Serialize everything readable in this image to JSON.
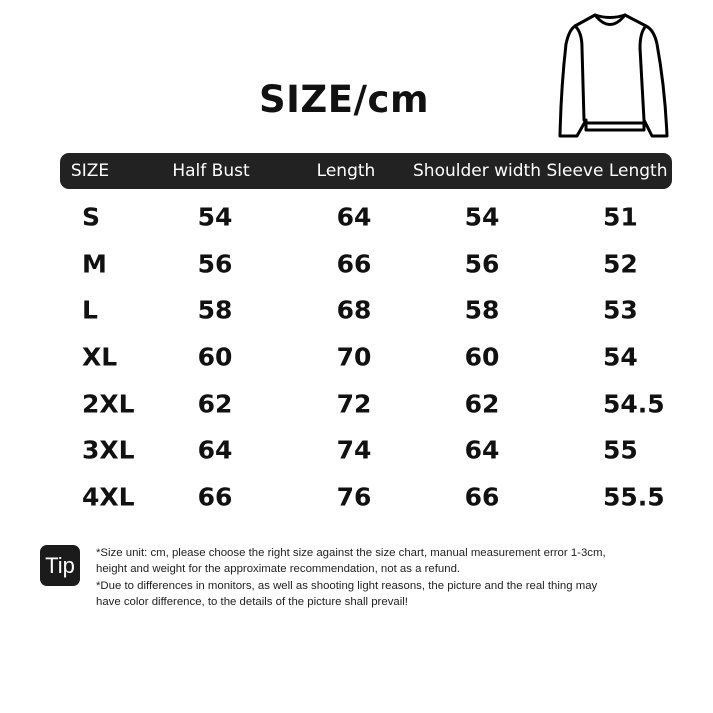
{
  "title": "SIZE/cm",
  "garment_icon": "sweatshirt-outline-icon",
  "table": {
    "headers": [
      "SIZE",
      "Half Bust",
      "Length",
      "Shoulder width",
      "Sleeve Length"
    ],
    "rows": [
      [
        "S",
        "54",
        "64",
        "54",
        "51"
      ],
      [
        "M",
        "56",
        "66",
        "56",
        "52"
      ],
      [
        "L",
        "58",
        "68",
        "58",
        "53"
      ],
      [
        "XL",
        "60",
        "70",
        "60",
        "54"
      ],
      [
        "2XL",
        "62",
        "72",
        "62",
        "54.5"
      ],
      [
        "3XL",
        "64",
        "74",
        "64",
        "55"
      ],
      [
        "4XL",
        "66",
        "76",
        "66",
        "55.5"
      ]
    ]
  },
  "tip": {
    "label": "Tip",
    "lines": [
      "*Size unit: cm, please choose the right size against the size chart, manual measurement error 1-3cm,",
      "height and weight for the approximate recommendation, not as a refund.",
      "*Due to differences in monitors, as well as shooting light reasons, the picture and the real thing may",
      "have color difference, to the details of the picture shall prevail!"
    ]
  },
  "colors": {
    "header_bg": "#222222",
    "header_text": "#ffffff",
    "text": "#111111"
  }
}
